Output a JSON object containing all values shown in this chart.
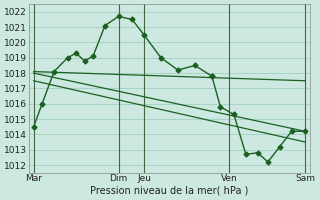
{
  "xlabel": "Pression niveau de la mer( hPa )",
  "background_color": "#cce8e0",
  "grid_color": "#99ccbb",
  "line_color": "#1a6020",
  "vline_color": "#446644",
  "ylim": [
    1011.5,
    1022.5
  ],
  "xlim": [
    -0.3,
    16.3
  ],
  "series1_markers": {
    "x": [
      0.0,
      0.5,
      1.2,
      2.0,
      2.5,
      3.0,
      3.5,
      4.2,
      5.0,
      5.8,
      6.5,
      7.5,
      8.5,
      9.5,
      10.5
    ],
    "y": [
      1014.5,
      1016.0,
      1018.1,
      1019.0,
      1019.3,
      1018.8,
      1019.1,
      1021.1,
      1021.7,
      1021.5,
      1020.5,
      1019.0,
      1018.2,
      1018.5,
      1017.8
    ]
  },
  "series2_flat": {
    "x": [
      0.0,
      16.0
    ],
    "y": [
      1018.1,
      1017.5
    ]
  },
  "series3_slope": {
    "x": [
      0.0,
      16.0
    ],
    "y": [
      1018.0,
      1014.2
    ]
  },
  "series4_slope2": {
    "x": [
      0.0,
      16.0
    ],
    "y": [
      1017.5,
      1013.5
    ]
  },
  "series5_markers": {
    "x": [
      10.5,
      11.0,
      11.8,
      12.5,
      13.2,
      13.8,
      14.5,
      15.2,
      16.0
    ],
    "y": [
      1017.8,
      1015.8,
      1015.3,
      1012.7,
      1012.8,
      1012.2,
      1013.2,
      1014.2,
      1014.2
    ]
  },
  "day_lines_x": [
    0.0,
    5.0,
    6.5,
    11.5,
    16.0
  ],
  "xtick_positions": [
    0.0,
    5.0,
    6.5,
    11.5,
    16.0
  ],
  "xtick_labels": [
    "Mar",
    "Dim",
    "Jeu",
    "Ven",
    "Sam"
  ],
  "ytick_values": [
    1012,
    1013,
    1014,
    1015,
    1016,
    1017,
    1018,
    1019,
    1020,
    1021,
    1022
  ]
}
